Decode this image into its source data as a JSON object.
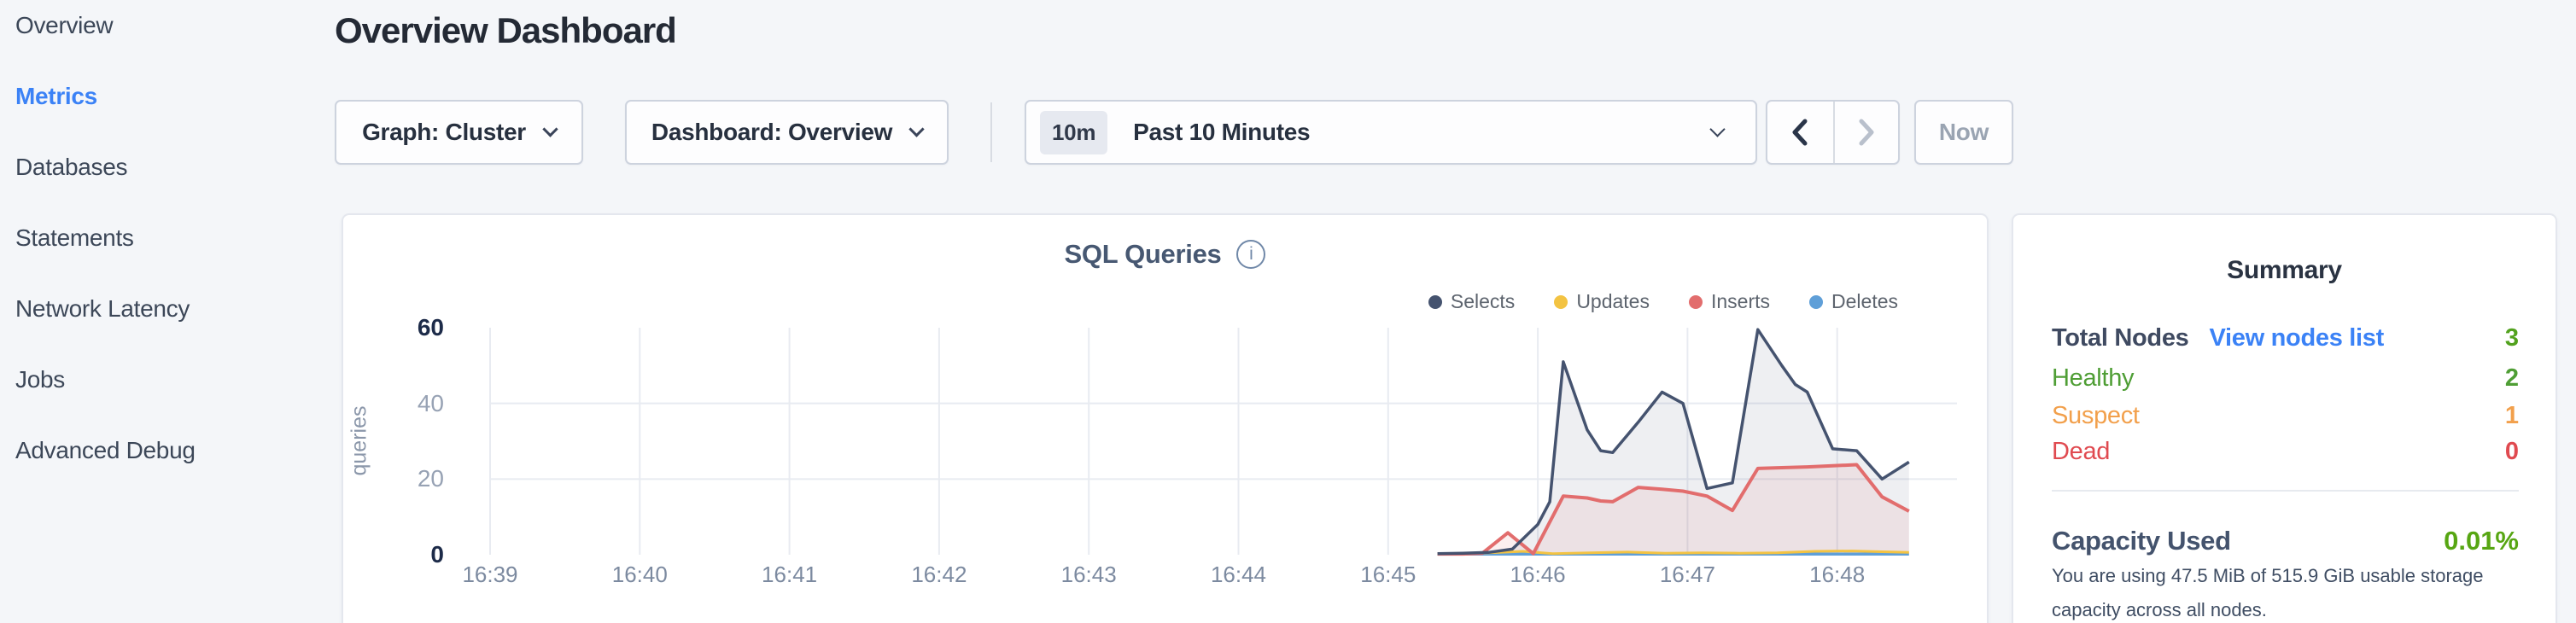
{
  "app": {
    "background": "#f4f6f9",
    "accent_blue": "#3b82f6",
    "green": "#52a21e",
    "orange": "#f2a04c",
    "status_red": "#e04a50"
  },
  "sidebar": {
    "items": [
      {
        "label": "Overview",
        "active": false
      },
      {
        "label": "Metrics",
        "active": true
      },
      {
        "label": "Databases",
        "active": false
      },
      {
        "label": "Statements",
        "active": false
      },
      {
        "label": "Network Latency",
        "active": false
      },
      {
        "label": "Jobs",
        "active": false
      },
      {
        "label": "Advanced Debug",
        "active": false
      }
    ]
  },
  "header": {
    "title": "Overview Dashboard"
  },
  "controls": {
    "graph_selector": "Graph: Cluster",
    "dashboard_selector": "Dashboard: Overview",
    "time_window_badge": "10m",
    "time_window_label": "Past 10 Minutes",
    "now_button": "Now",
    "icons": {
      "graph_dropdown": "chevron-down",
      "dashboard_dropdown": "chevron-down",
      "time_dropdown": "chevron-down",
      "prev": "chevron-left",
      "next": "chevron-right"
    }
  },
  "chart_data": {
    "type": "line",
    "title": "SQL Queries",
    "ylabel": "queries",
    "xlabel": "",
    "x_ticks": [
      "16:39",
      "16:40",
      "16:41",
      "16:42",
      "16:43",
      "16:44",
      "16:45",
      "16:46",
      "16:47",
      "16:48"
    ],
    "x_tick_interval_minutes": 1,
    "y_ticks": [
      0,
      20,
      40,
      60
    ],
    "ylim": [
      0,
      60
    ],
    "xlim_minutes": [
      0,
      9.79
    ],
    "grid": true,
    "legend_position": "top-right",
    "series": [
      {
        "name": "Selects",
        "color": "#45536f",
        "fill": "rgba(69,83,111,0.09)",
        "points": [
          [
            6.33,
            0.3
          ],
          [
            6.5,
            0.4
          ],
          [
            6.67,
            0.6
          ],
          [
            6.83,
            1.5
          ],
          [
            7.0,
            8
          ],
          [
            7.08,
            14
          ],
          [
            7.17,
            51
          ],
          [
            7.33,
            33
          ],
          [
            7.42,
            27.5
          ],
          [
            7.5,
            27
          ],
          [
            7.67,
            35
          ],
          [
            7.83,
            43
          ],
          [
            7.97,
            40
          ],
          [
            8.13,
            17.5
          ],
          [
            8.3,
            19
          ],
          [
            8.47,
            59.5
          ],
          [
            8.63,
            50
          ],
          [
            8.72,
            45
          ],
          [
            8.8,
            43
          ],
          [
            8.97,
            28
          ],
          [
            9.13,
            27.5
          ],
          [
            9.3,
            20
          ],
          [
            9.48,
            24.5
          ]
        ]
      },
      {
        "name": "Updates",
        "color": "#f3c342",
        "fill": "none",
        "points": [
          [
            6.33,
            0.2
          ],
          [
            6.6,
            0.4
          ],
          [
            6.9,
            0.9
          ],
          [
            7.1,
            0.3
          ],
          [
            7.35,
            0.5
          ],
          [
            7.6,
            0.7
          ],
          [
            7.85,
            0.4
          ],
          [
            8.1,
            0.5
          ],
          [
            8.35,
            0.4
          ],
          [
            8.6,
            0.5
          ],
          [
            8.85,
            0.9
          ],
          [
            9.1,
            1.0
          ],
          [
            9.3,
            0.8
          ],
          [
            9.48,
            0.6
          ]
        ]
      },
      {
        "name": "Inserts",
        "color": "#e26d6d",
        "fill": "rgba(226,109,109,0.10)",
        "points": [
          [
            6.33,
            0.2
          ],
          [
            6.5,
            0.2
          ],
          [
            6.63,
            0.4
          ],
          [
            6.8,
            5.8
          ],
          [
            6.97,
            0.3
          ],
          [
            7.17,
            15.5
          ],
          [
            7.33,
            15
          ],
          [
            7.42,
            14.2
          ],
          [
            7.5,
            14
          ],
          [
            7.67,
            17.8
          ],
          [
            7.83,
            17.3
          ],
          [
            7.97,
            16.8
          ],
          [
            8.13,
            15.5
          ],
          [
            8.3,
            11.7
          ],
          [
            8.47,
            22.8
          ],
          [
            8.63,
            23
          ],
          [
            8.8,
            23.2
          ],
          [
            8.97,
            23.5
          ],
          [
            9.13,
            23.8
          ],
          [
            9.3,
            15.3
          ],
          [
            9.48,
            11.5
          ]
        ]
      },
      {
        "name": "Deletes",
        "color": "#5f9fd8",
        "fill": "none",
        "points": [
          [
            6.33,
            0.15
          ],
          [
            9.48,
            0.15
          ]
        ]
      }
    ]
  },
  "summary": {
    "title": "Summary",
    "total_nodes": {
      "label": "Total Nodes",
      "link": "View nodes list",
      "value": "3",
      "value_color": "#52a21e"
    },
    "node_statuses": [
      {
        "label": "Healthy",
        "value": "2",
        "color": "#4f9e35"
      },
      {
        "label": "Suspect",
        "value": "1",
        "color": "#f2a04c"
      },
      {
        "label": "Dead",
        "value": "0",
        "color": "#e04a50"
      }
    ],
    "capacity": {
      "label": "Capacity Used",
      "value": "0.01%",
      "value_color": "#57a613",
      "description": "You are using 47.5 MiB of 515.9 GiB usable storage capacity across all nodes."
    }
  }
}
